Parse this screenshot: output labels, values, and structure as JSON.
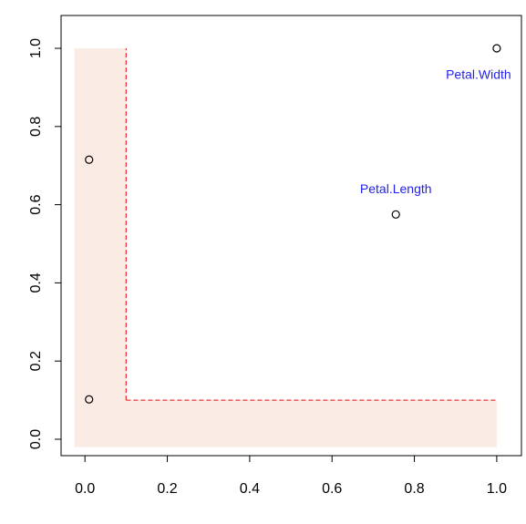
{
  "chart_data": {
    "type": "scatter",
    "series": [
      {
        "x": [
          0.01,
          0.01,
          0.755,
          1.0
        ],
        "values": [
          0.715,
          0.102,
          0.575,
          1.0
        ],
        "color": "#000000",
        "labels": [
          null,
          null,
          "Petal.Length",
          "Petal.Width"
        ],
        "label_positions": [
          null,
          null,
          "above",
          "below"
        ],
        "label_color": "#2222ee"
      }
    ],
    "threshold_x": 0.1,
    "threshold_y": 0.1,
    "threshold_color": "#e8383d",
    "shade_color": "#fbebe5",
    "shade_xlim": [
      -0.025,
      1.0
    ],
    "shade_ylim": [
      -0.02,
      1.0
    ],
    "xlim": [
      -0.058,
      1.06
    ],
    "ylim": [
      -0.042,
      1.084
    ],
    "xticks": [
      {
        "value": 0,
        "label": "0.0"
      },
      0.2,
      0.4,
      0.6,
      0.8,
      {
        "value": 1,
        "label": "1.0"
      }
    ],
    "yticks": [
      {
        "value": 0,
        "label": "0.0"
      },
      0.2,
      0.4,
      0.6,
      0.8,
      {
        "value": 1,
        "label": "1.0"
      }
    ]
  }
}
